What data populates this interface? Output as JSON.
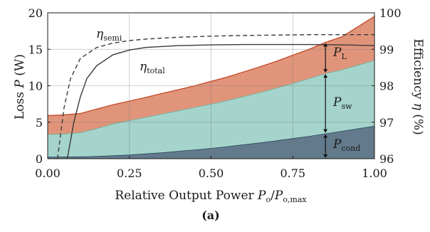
{
  "chart_data": {
    "type": "area",
    "x_axis": {
      "label": "Relative Output Power",
      "symbol": "P",
      "sub1": "o",
      "sub2": "o,max",
      "range": [
        0,
        1
      ],
      "ticks": [
        0,
        0.25,
        0.5,
        0.75,
        1
      ],
      "tick_labels": [
        "0.00",
        "0.25",
        "0.50",
        "0.75",
        "1.00"
      ]
    },
    "y_left": {
      "label": "Loss",
      "symbol": "P",
      "unit": "(W)",
      "range": [
        0,
        20
      ],
      "ticks": [
        0,
        5,
        10,
        15,
        20
      ],
      "tick_labels": [
        "0",
        "5",
        "10",
        "15",
        "20"
      ]
    },
    "y_right": {
      "label": "Efficiency",
      "symbol": "η",
      "unit": "(%)",
      "range": [
        96,
        100
      ],
      "ticks": [
        96,
        97,
        98,
        99,
        100
      ],
      "tick_labels": [
        "96",
        "97",
        "98",
        "99",
        "100"
      ]
    },
    "grid": true,
    "x": [
      0,
      0.05,
      0.1,
      0.15,
      0.2,
      0.25,
      0.3,
      0.35,
      0.4,
      0.45,
      0.5,
      0.55,
      0.6,
      0.65,
      0.7,
      0.75,
      0.8,
      0.85,
      0.9,
      0.95,
      1.0
    ],
    "stacked_series": [
      {
        "name": "P_cond",
        "symbol": "P",
        "sub": "cond",
        "color": "#627a8b",
        "values": [
          0.25,
          0.26,
          0.3,
          0.35,
          0.45,
          0.55,
          0.7,
          0.85,
          1.05,
          1.25,
          1.45,
          1.7,
          1.95,
          2.2,
          2.5,
          2.8,
          3.1,
          3.45,
          3.8,
          4.15,
          4.5
        ]
      },
      {
        "name": "P_sw",
        "symbol": "P",
        "sub": "sw",
        "color": "#a4d4cb",
        "values": [
          3.1,
          3.15,
          3.3,
          3.8,
          4.35,
          4.7,
          5.0,
          5.3,
          5.55,
          5.8,
          6.05,
          6.3,
          6.6,
          6.9,
          7.2,
          7.55,
          7.9,
          8.25,
          8.4,
          8.7,
          9.0
        ]
      },
      {
        "name": "P_L",
        "symbol": "P",
        "sub": "L",
        "color": "#e0957b",
        "values": [
          2.55,
          2.6,
          2.6,
          2.65,
          2.6,
          2.65,
          2.7,
          2.8,
          2.85,
          2.95,
          3.1,
          3.2,
          3.35,
          3.5,
          3.65,
          3.85,
          4.0,
          4.25,
          4.5,
          5.25,
          6.0
        ]
      }
    ],
    "efficiency_series": [
      {
        "name": "η_semi",
        "symbol": "η",
        "sub": "semi",
        "style": "dashed",
        "x": [
          0.03,
          0.05,
          0.07,
          0.1,
          0.15,
          0.2,
          0.25,
          0.3,
          0.4,
          0.5,
          0.6,
          0.7,
          0.8,
          0.85,
          0.9,
          1.0
        ],
        "values": [
          96.0,
          97.4,
          98.2,
          98.75,
          99.05,
          99.17,
          99.24,
          99.28,
          99.33,
          99.36,
          99.38,
          99.39,
          99.4,
          99.4,
          99.4,
          99.4
        ]
      },
      {
        "name": "η_total",
        "symbol": "η",
        "sub": "total",
        "style": "solid",
        "x": [
          0.06,
          0.08,
          0.1,
          0.12,
          0.15,
          0.2,
          0.25,
          0.3,
          0.4,
          0.5,
          0.6,
          0.7,
          0.8,
          0.9,
          1.0
        ],
        "values": [
          96.0,
          97.0,
          97.7,
          98.2,
          98.55,
          98.85,
          98.98,
          99.05,
          99.1,
          99.12,
          99.13,
          99.13,
          99.13,
          99.12,
          99.1
        ]
      }
    ]
  },
  "caption": "(a)"
}
